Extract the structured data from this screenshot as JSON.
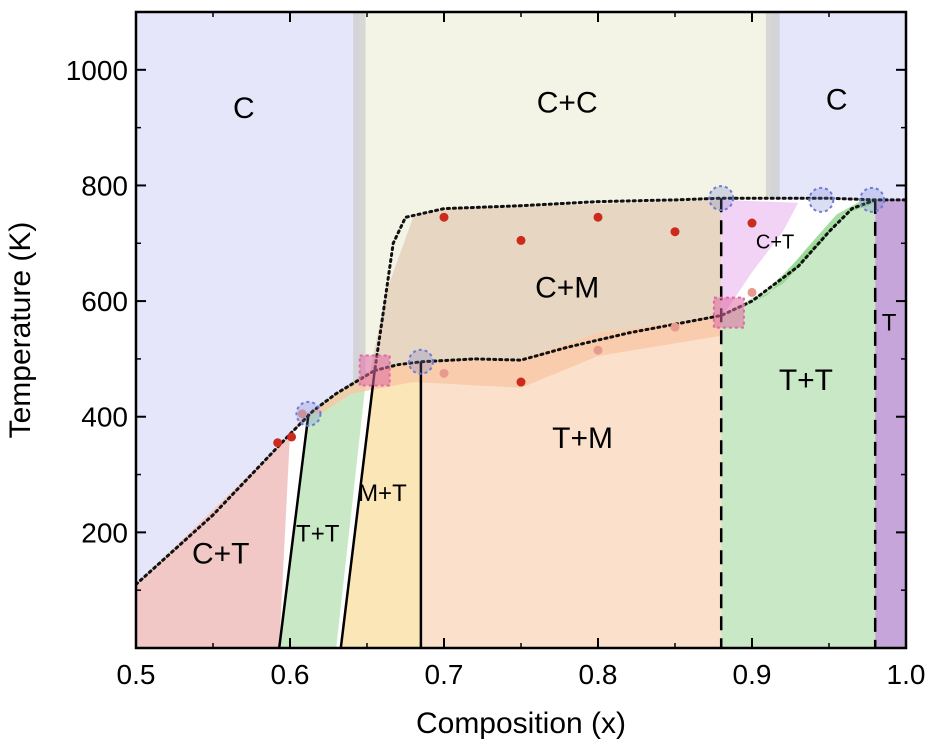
{
  "chart_data": {
    "type": "area",
    "title": "",
    "xlabel": "Composition (x)",
    "ylabel": "Temperature (K)",
    "xlim": [
      0.5,
      1.0
    ],
    "ylim": [
      0,
      1100
    ],
    "xticks": [
      0.5,
      0.6,
      0.7,
      0.8,
      0.9,
      1.0
    ],
    "xtick_labels": [
      "0.5",
      "0.6",
      "0.7",
      "0.8",
      "0.9",
      "1.0"
    ],
    "yticks": [
      200,
      400,
      600,
      800,
      1000
    ],
    "ytick_labels": [
      "200",
      "400",
      "600",
      "800",
      "1000"
    ],
    "grid": false,
    "legend": "none",
    "colors": {
      "C_left": "#e6e6fb",
      "C_right": "#e6e6fb",
      "C+C": "#f3f3e6",
      "C+M": "#e6d6c2",
      "C+T_upper": "#f2d3f5",
      "C+T_lower": "#f2c8c6",
      "T+T": "#c9e8c6",
      "M+T": "#fbe6b8",
      "T+M": "#fbe1cc",
      "T": "#c6a6da",
      "band_gray": "#cfcfcf",
      "band_green": "#8fd68a",
      "band_orange": "#f7c7a4",
      "dot_red": "#cc2a1c",
      "dot_pink": "#e79a8e",
      "circle_blue": "#6d7bd1",
      "square_pink": "#e06aa4"
    },
    "regions": [
      {
        "label": "C",
        "polygon": [
          [
            0.5,
            1100
          ],
          [
            0.645,
            1100
          ],
          [
            0.645,
            455
          ],
          [
            0.62,
            420
          ],
          [
            0.5,
            110
          ]
        ],
        "color_key": "C_left"
      },
      {
        "label": "C+C",
        "polygon": [
          [
            0.645,
            1100
          ],
          [
            0.912,
            1100
          ],
          [
            0.912,
            775
          ],
          [
            0.88,
            775
          ],
          [
            0.7,
            760
          ],
          [
            0.68,
            745
          ],
          [
            0.663,
            620
          ],
          [
            0.652,
            480
          ],
          [
            0.645,
            455
          ]
        ],
        "color_key": "C+C"
      },
      {
        "label": "C",
        "polygon": [
          [
            0.912,
            1100
          ],
          [
            1.0,
            1100
          ],
          [
            1.0,
            775
          ],
          [
            0.912,
            775
          ]
        ],
        "color_key": "C_right"
      },
      {
        "label": "C+M",
        "polygon": [
          [
            0.652,
            480
          ],
          [
            0.663,
            620
          ],
          [
            0.68,
            745
          ],
          [
            0.7,
            760
          ],
          [
            0.88,
            775
          ],
          [
            0.88,
            575
          ],
          [
            0.8,
            545
          ],
          [
            0.75,
            500
          ],
          [
            0.68,
            495
          ]
        ],
        "color_key": "C+M"
      },
      {
        "label": "C+T",
        "polygon": [
          [
            0.88,
            775
          ],
          [
            0.93,
            770
          ],
          [
            0.92,
            720
          ],
          [
            0.9,
            650
          ],
          [
            0.885,
            590
          ],
          [
            0.88,
            575
          ]
        ],
        "color_key": "C+T_upper"
      },
      {
        "label": "C+T",
        "polygon": [
          [
            0.5,
            110
          ],
          [
            0.62,
            420
          ],
          [
            0.61,
            405
          ],
          [
            0.6,
            370
          ],
          [
            0.593,
            0
          ],
          [
            0.5,
            0
          ]
        ],
        "color_key": "C+T_lower"
      },
      {
        "label": "T+T",
        "polygon": [
          [
            0.612,
            405
          ],
          [
            0.65,
            480
          ],
          [
            0.63,
            0
          ],
          [
            0.593,
            0
          ]
        ],
        "color_key": "T+T"
      },
      {
        "label": "M+T",
        "polygon": [
          [
            0.655,
            480
          ],
          [
            0.685,
            495
          ],
          [
            0.685,
            0
          ],
          [
            0.633,
            0
          ]
        ],
        "color_key": "M+T"
      },
      {
        "label": "T+M",
        "polygon": [
          [
            0.685,
            495
          ],
          [
            0.75,
            500
          ],
          [
            0.8,
            545
          ],
          [
            0.88,
            575
          ],
          [
            0.88,
            0
          ],
          [
            0.685,
            0
          ]
        ],
        "color_key": "T+M"
      },
      {
        "label": "T+T",
        "polygon": [
          [
            0.88,
            575
          ],
          [
            0.91,
            620
          ],
          [
            0.94,
            700
          ],
          [
            0.965,
            760
          ],
          [
            0.98,
            775
          ],
          [
            0.98,
            0
          ],
          [
            0.88,
            0
          ]
        ],
        "color_key": "T+T"
      },
      {
        "label": "T",
        "polygon": [
          [
            0.98,
            775
          ],
          [
            1.0,
            775
          ],
          [
            1.0,
            0
          ],
          [
            0.98,
            0
          ]
        ],
        "color_key": "T"
      }
    ],
    "bands": [
      {
        "name": "gray-left",
        "polygon": [
          [
            0.641,
            1100
          ],
          [
            0.649,
            1100
          ],
          [
            0.649,
            460
          ],
          [
            0.641,
            460
          ]
        ],
        "color_key": "band_gray"
      },
      {
        "name": "gray-right",
        "polygon": [
          [
            0.909,
            1100
          ],
          [
            0.918,
            1100
          ],
          [
            0.918,
            780
          ],
          [
            0.909,
            780
          ]
        ],
        "color_key": "band_gray"
      },
      {
        "name": "green-upper",
        "polygon": [
          [
            0.885,
            580
          ],
          [
            0.91,
            610
          ],
          [
            0.935,
            690
          ],
          [
            0.955,
            750
          ],
          [
            0.972,
            775
          ],
          [
            0.985,
            775
          ],
          [
            0.96,
            750
          ],
          [
            0.945,
            700
          ],
          [
            0.92,
            630
          ],
          [
            0.895,
            590
          ]
        ],
        "color_key": "band_green"
      },
      {
        "name": "orange-lower",
        "polygon": [
          [
            0.612,
            405
          ],
          [
            0.652,
            480
          ],
          [
            0.685,
            495
          ],
          [
            0.75,
            500
          ],
          [
            0.8,
            545
          ],
          [
            0.88,
            575
          ],
          [
            0.88,
            540
          ],
          [
            0.8,
            505
          ],
          [
            0.75,
            450
          ],
          [
            0.68,
            460
          ],
          [
            0.64,
            440
          ],
          [
            0.62,
            405
          ]
        ],
        "color_key": "band_orange"
      }
    ],
    "boundaries": {
      "upper_dotted": [
        [
          0.5,
          110
        ],
        [
          0.55,
          230
        ],
        [
          0.6,
          370
        ],
        [
          0.615,
          410
        ],
        [
          0.63,
          440
        ],
        [
          0.655,
          480
        ],
        [
          0.66,
          570
        ],
        [
          0.667,
          700
        ],
        [
          0.675,
          745
        ],
        [
          0.7,
          760
        ],
        [
          0.75,
          765
        ],
        [
          0.8,
          772
        ],
        [
          0.85,
          775
        ],
        [
          0.88,
          778
        ],
        [
          0.95,
          778
        ],
        [
          0.98,
          775
        ],
        [
          1.0,
          775
        ]
      ],
      "lower_dotted": [
        [
          0.655,
          480
        ],
        [
          0.67,
          490
        ],
        [
          0.685,
          495
        ],
        [
          0.72,
          500
        ],
        [
          0.75,
          498
        ],
        [
          0.78,
          520
        ],
        [
          0.82,
          545
        ],
        [
          0.88,
          575
        ],
        [
          0.9,
          600
        ],
        [
          0.93,
          660
        ],
        [
          0.95,
          720
        ],
        [
          0.965,
          760
        ],
        [
          0.98,
          775
        ]
      ],
      "solid_lines": [
        [
          [
            0.612,
            405
          ],
          [
            0.593,
            0
          ]
        ],
        [
          [
            0.655,
            480
          ],
          [
            0.633,
            0
          ]
        ],
        [
          [
            0.685,
            495
          ],
          [
            0.685,
            0
          ]
        ]
      ],
      "dashed_lines": [
        [
          [
            0.88,
            778
          ],
          [
            0.88,
            0
          ]
        ],
        [
          [
            0.98,
            775
          ],
          [
            0.98,
            0
          ]
        ]
      ]
    },
    "points": {
      "red_dots": [
        [
          0.592,
          355
        ],
        [
          0.601,
          365
        ],
        [
          0.7,
          745
        ],
        [
          0.75,
          705
        ],
        [
          0.8,
          745
        ],
        [
          0.85,
          720
        ],
        [
          0.9,
          735
        ],
        [
          0.75,
          460
        ]
      ],
      "pink_dots": [
        [
          0.608,
          405
        ],
        [
          0.7,
          475
        ],
        [
          0.8,
          515
        ],
        [
          0.85,
          555
        ],
        [
          0.9,
          615
        ]
      ],
      "blue_circles": [
        [
          0.612,
          405
        ],
        [
          0.685,
          495
        ],
        [
          0.88,
          778
        ],
        [
          0.945,
          775
        ],
        [
          0.978,
          775
        ]
      ],
      "pink_squares": [
        [
          0.655,
          480
        ],
        [
          0.885,
          580
        ]
      ]
    },
    "labels": [
      {
        "text": "C",
        "x": 0.57,
        "y": 930,
        "size": "large"
      },
      {
        "text": "C+C",
        "x": 0.78,
        "y": 940,
        "size": "large"
      },
      {
        "text": "C",
        "x": 0.955,
        "y": 945,
        "size": "large"
      },
      {
        "text": "C+M",
        "x": 0.78,
        "y": 620,
        "size": "large"
      },
      {
        "text": "C+T",
        "x": 0.915,
        "y": 700,
        "size": "small"
      },
      {
        "text": "T+T",
        "x": 0.935,
        "y": 460,
        "size": "large"
      },
      {
        "text": "T",
        "x": 0.989,
        "y": 560,
        "size": "medium"
      },
      {
        "text": "T+M",
        "x": 0.79,
        "y": 360,
        "size": "large"
      },
      {
        "text": "M+T",
        "x": 0.66,
        "y": 265,
        "size": "medium"
      },
      {
        "text": "T+T",
        "x": 0.618,
        "y": 195,
        "size": "medium"
      },
      {
        "text": "C+T",
        "x": 0.555,
        "y": 160,
        "size": "large"
      }
    ]
  }
}
